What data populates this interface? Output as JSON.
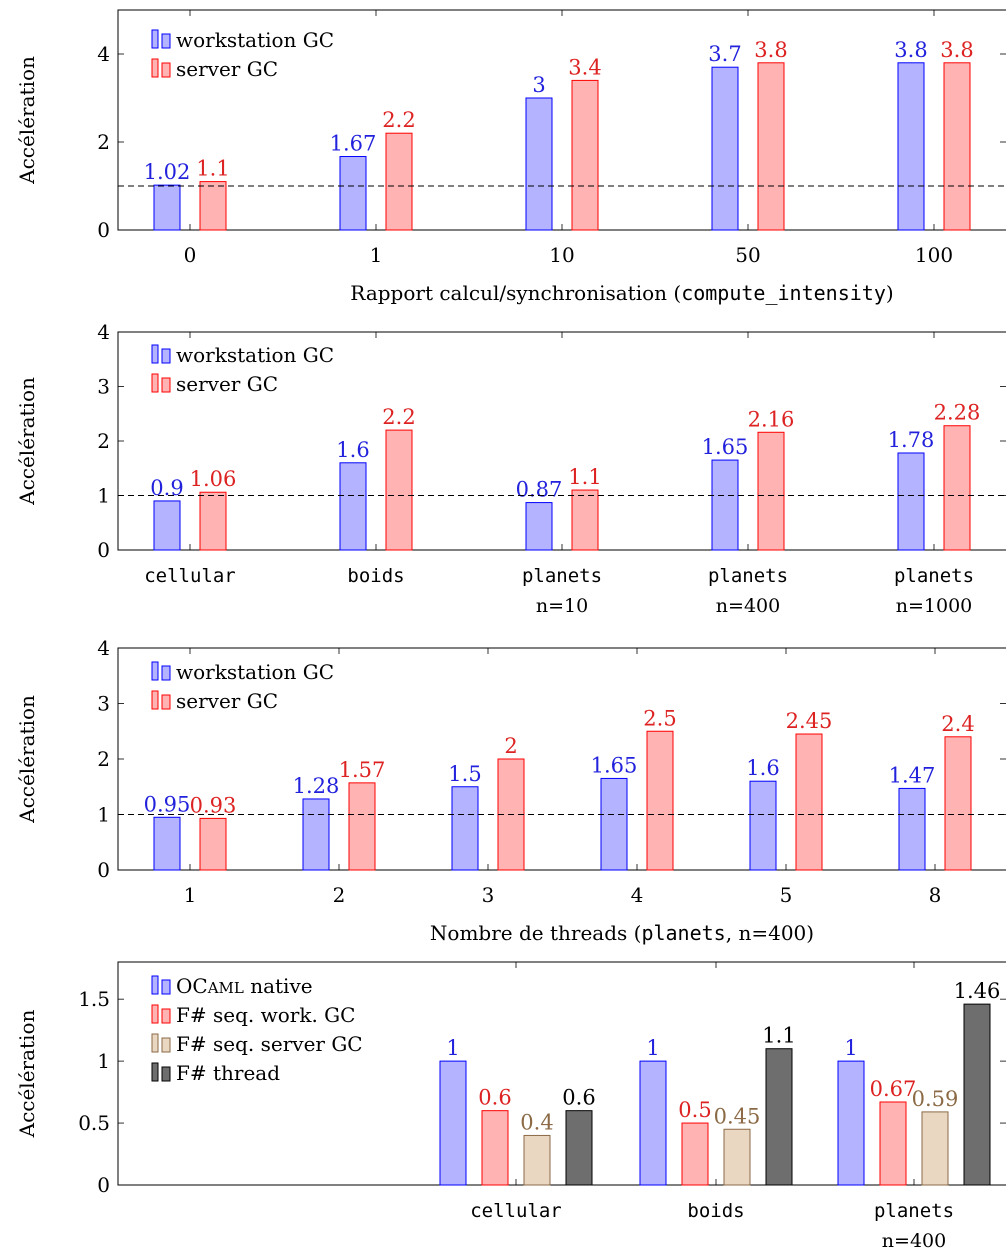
{
  "colors": {
    "blue_fill": "#b3b3ff",
    "blue_stroke": "#0000ff",
    "blue_text": "#2222dd",
    "red_fill": "#ffb3b3",
    "red_stroke": "#ff0000",
    "red_text": "#dd2222",
    "tan_fill": "#ead7c2",
    "tan_stroke": "#8b6a45",
    "tan_text": "#8b6a45",
    "gray_fill": "#6e6e6e",
    "gray_stroke": "#000000",
    "gray_text": "#000000"
  },
  "chart_data": [
    {
      "type": "bar",
      "ylabel": "Accélération",
      "xlabel_parts": [
        {
          "text": "Rapport calcul/synchronisation (",
          "mono": false
        },
        {
          "text": "compute_intensity",
          "mono": true
        },
        {
          "text": ")",
          "mono": false
        }
      ],
      "ylim": [
        0,
        5
      ],
      "yticks": [
        "0",
        "2",
        "4"
      ],
      "ytick_values": [
        0,
        2,
        4
      ],
      "reference_line": 1,
      "categories": [
        [
          "0"
        ],
        [
          "1"
        ],
        [
          "10"
        ],
        [
          "50"
        ],
        [
          "100"
        ]
      ],
      "category_mono": false,
      "series": [
        {
          "name": "workstation GC",
          "color": "blue",
          "values": [
            1.02,
            1.67,
            3,
            3.7,
            3.8
          ],
          "labels": [
            "1.02",
            "1.67",
            "3",
            "3.7",
            "3.8"
          ]
        },
        {
          "name": "server GC",
          "color": "red",
          "values": [
            1.1,
            2.2,
            3.4,
            3.8,
            3.8
          ],
          "labels": [
            "1.1",
            "2.2",
            "3.4",
            "3.8",
            "3.8"
          ]
        }
      ]
    },
    {
      "type": "bar",
      "ylabel": "Accélération",
      "xlabel_parts": [],
      "ylim": [
        0,
        4
      ],
      "yticks": [
        "0",
        "1",
        "2",
        "3",
        "4"
      ],
      "ytick_values": [
        0,
        1,
        2,
        3,
        4
      ],
      "reference_line": 1,
      "categories": [
        [
          "cellular"
        ],
        [
          "boids"
        ],
        [
          "planets",
          "n=10"
        ],
        [
          "planets",
          "n=400"
        ],
        [
          "planets",
          "n=1000"
        ]
      ],
      "category_mono": true,
      "series": [
        {
          "name": "workstation GC",
          "color": "blue",
          "values": [
            0.9,
            1.6,
            0.87,
            1.65,
            1.78
          ],
          "labels": [
            "0.9",
            "1.6",
            "0.87",
            "1.65",
            "1.78"
          ]
        },
        {
          "name": "server GC",
          "color": "red",
          "values": [
            1.06,
            2.2,
            1.1,
            2.16,
            2.28
          ],
          "labels": [
            "1.06",
            "2.2",
            "1.1",
            "2.16",
            "2.28"
          ]
        }
      ]
    },
    {
      "type": "bar",
      "ylabel": "Accélération",
      "xlabel_parts": [
        {
          "text": "Nombre de threads (",
          "mono": false
        },
        {
          "text": "planets",
          "mono": true
        },
        {
          "text": ", n=400)",
          "mono": false
        }
      ],
      "ylim": [
        0,
        4
      ],
      "yticks": [
        "0",
        "1",
        "2",
        "3",
        "4"
      ],
      "ytick_values": [
        0,
        1,
        2,
        3,
        4
      ],
      "reference_line": 1,
      "categories": [
        [
          "1"
        ],
        [
          "2"
        ],
        [
          "3"
        ],
        [
          "4"
        ],
        [
          "5"
        ],
        [
          "8"
        ]
      ],
      "category_mono": false,
      "series": [
        {
          "name": "workstation GC",
          "color": "blue",
          "values": [
            0.95,
            1.28,
            1.5,
            1.65,
            1.6,
            1.47
          ],
          "labels": [
            "0.95",
            "1.28",
            "1.5",
            "1.65",
            "1.6",
            "1.47"
          ]
        },
        {
          "name": "server GC",
          "color": "red",
          "values": [
            0.93,
            1.57,
            2,
            2.5,
            2.45,
            2.4
          ],
          "labels": [
            "0.93",
            "1.57",
            "2",
            "2.5",
            "2.45",
            "2.4"
          ]
        }
      ]
    },
    {
      "type": "bar",
      "ylabel": "Accélération",
      "xlabel_parts": [],
      "ylim": [
        0,
        1.8
      ],
      "yticks": [
        "0",
        "0.5",
        "1",
        "1.5"
      ],
      "ytick_values": [
        0,
        0.5,
        1,
        1.5
      ],
      "reference_line": null,
      "categories": [
        [
          "cellular"
        ],
        [
          "boids"
        ],
        [
          "planets",
          "n=400"
        ]
      ],
      "category_mono": true,
      "series": [
        {
          "name": "OCAML native",
          "color": "blue",
          "values": [
            1,
            1,
            1
          ],
          "labels": [
            "1",
            "1",
            "1"
          ]
        },
        {
          "name": "F# seq. work. GC",
          "color": "red",
          "values": [
            0.6,
            0.5,
            0.67
          ],
          "labels": [
            "0.6",
            "0.5",
            "0.67"
          ]
        },
        {
          "name": "F# seq. server GC",
          "color": "tan",
          "values": [
            0.4,
            0.45,
            0.59
          ],
          "labels": [
            "0.4",
            "0.45",
            "0.59"
          ]
        },
        {
          "name": "F# thread",
          "color": "gray",
          "values": [
            0.6,
            1.1,
            1.46
          ],
          "labels": [
            "0.6",
            "1.1",
            "1.46"
          ]
        }
      ]
    }
  ]
}
